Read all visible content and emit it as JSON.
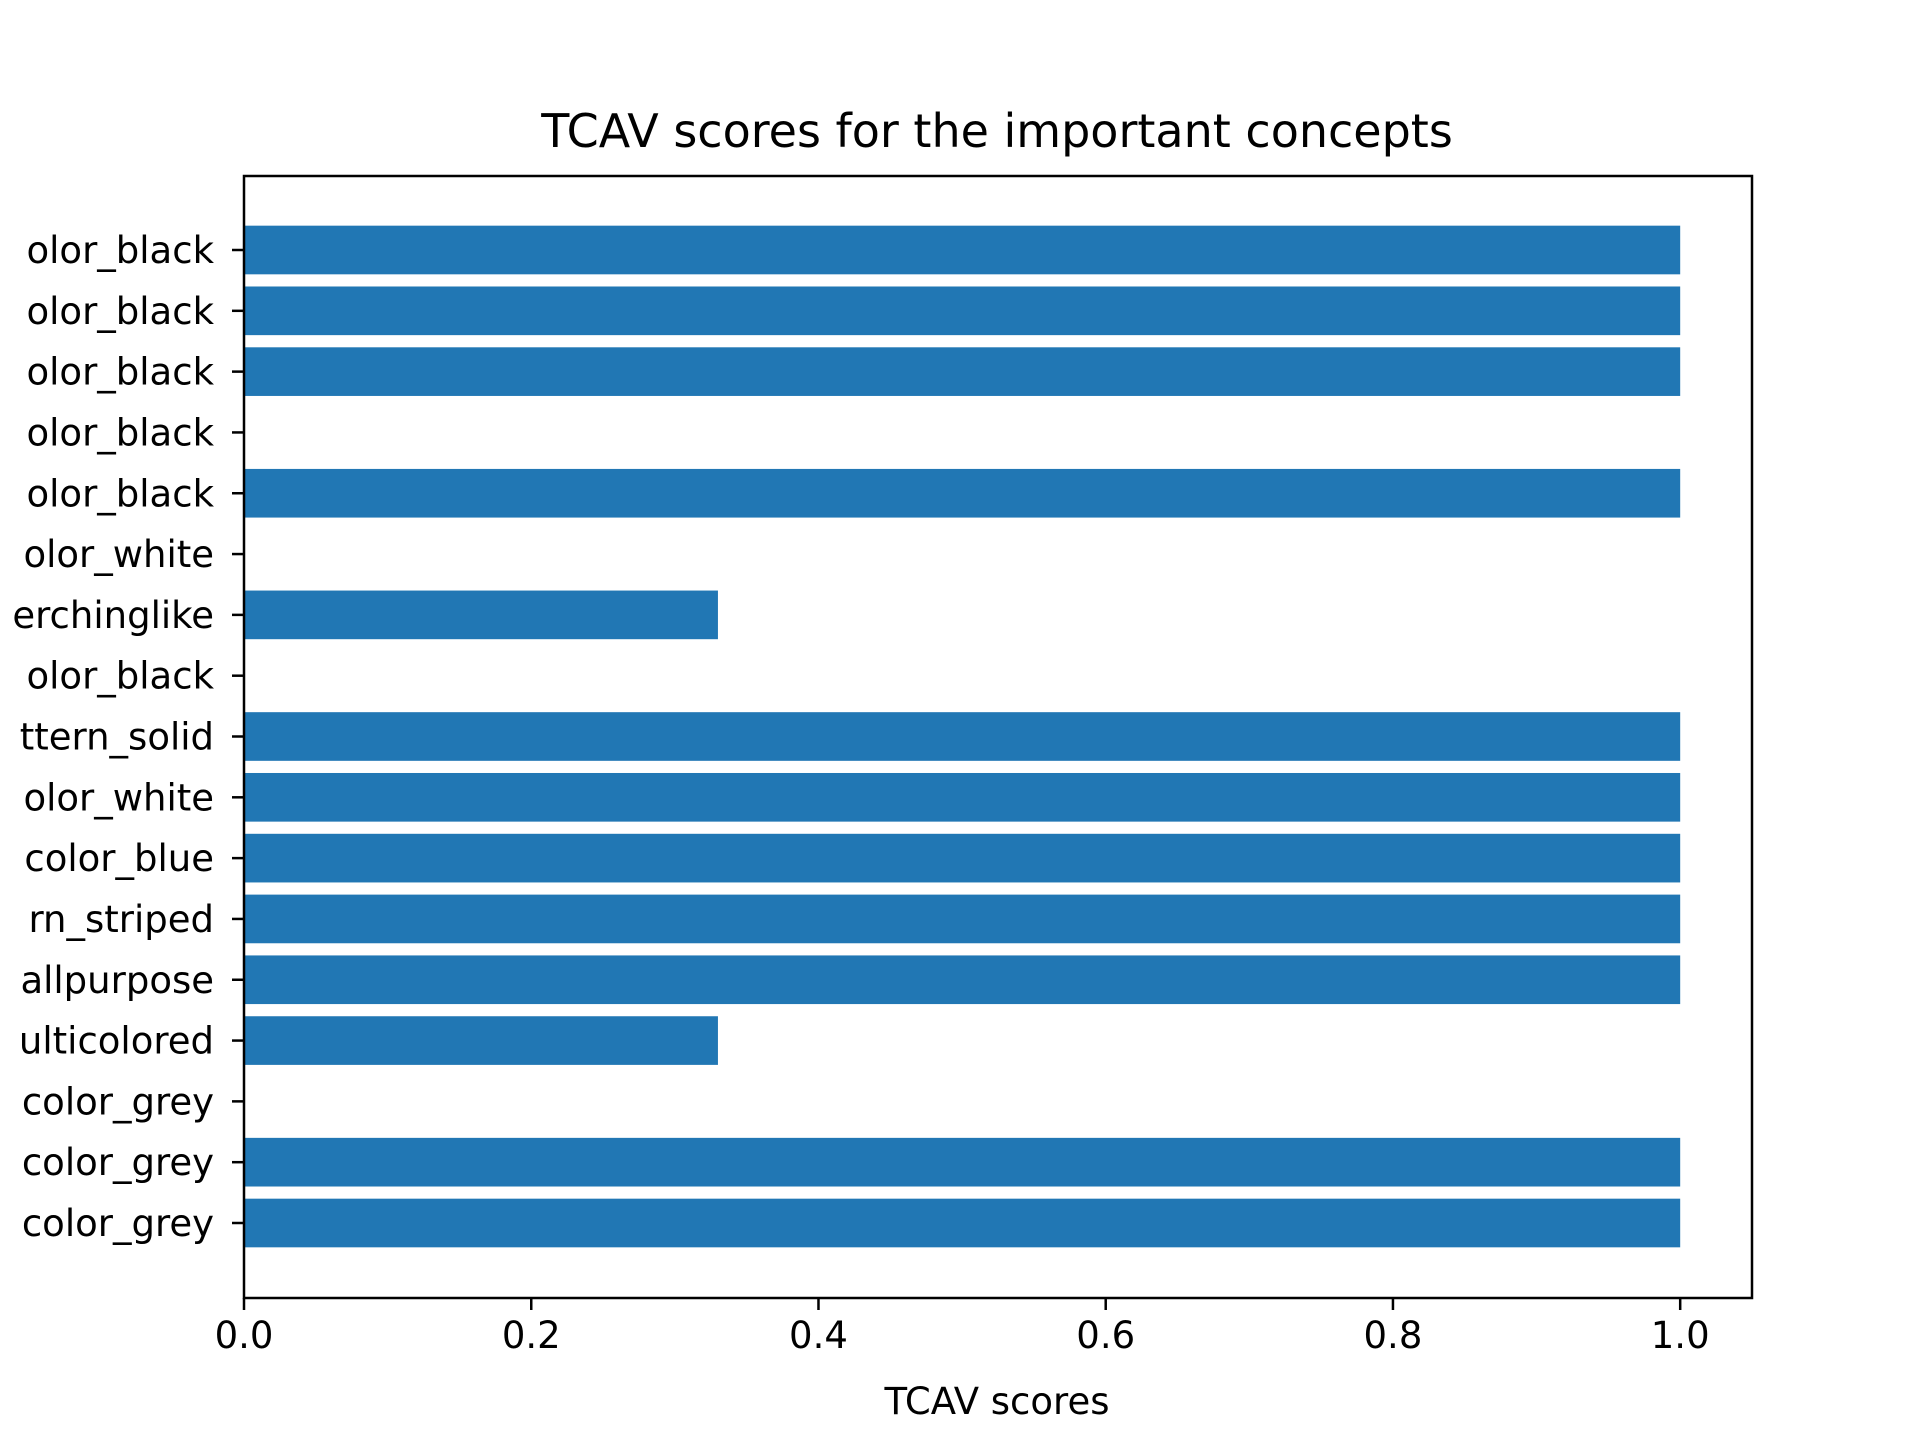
{
  "chart_data": {
    "type": "bar",
    "orientation": "horizontal",
    "title": "TCAV scores for the important concepts",
    "xlabel": "TCAV scores",
    "ylabel": "",
    "xlim": [
      0,
      1.05
    ],
    "xticks": [
      0.0,
      0.2,
      0.4,
      0.6,
      0.8,
      1.0
    ],
    "xtick_labels": [
      "0.0",
      "0.2",
      "0.4",
      "0.6",
      "0.8",
      "1.0"
    ],
    "categories": [
      "olor_black",
      "olor_black",
      "olor_black",
      "olor_black",
      "olor_black",
      "olor_white",
      "erchinglike",
      "olor_black",
      "ttern_solid",
      "olor_white",
      "color_blue",
      "rn_striped",
      "allpurpose",
      "ulticolored",
      "color_grey",
      "color_grey",
      "color_grey"
    ],
    "values": [
      1.0,
      1.0,
      1.0,
      0.0,
      1.0,
      0.0,
      0.33,
      0.0,
      1.0,
      1.0,
      1.0,
      1.0,
      1.0,
      0.33,
      0.0,
      1.0,
      1.0
    ],
    "bar_color": "#2177b4",
    "grid": false,
    "legend": "none"
  }
}
